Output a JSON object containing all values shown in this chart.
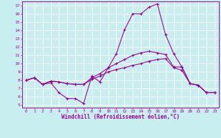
{
  "xlabel": "Windchill (Refroidissement éolien,°C)",
  "bg_color": "#c8eef0",
  "line_color": "#990099",
  "grid_color": "#ffffff",
  "xlim": [
    -0.5,
    23.5
  ],
  "ylim": [
    4.7,
    17.5
  ],
  "xticks": [
    0,
    1,
    2,
    3,
    4,
    5,
    6,
    7,
    8,
    9,
    10,
    11,
    12,
    13,
    14,
    15,
    16,
    17,
    18,
    19,
    20,
    21,
    22,
    23
  ],
  "yticks": [
    5,
    6,
    7,
    8,
    9,
    10,
    11,
    12,
    13,
    14,
    15,
    16,
    17
  ],
  "line1_x": [
    0,
    1,
    2,
    3,
    4,
    5,
    6,
    7,
    8,
    9,
    10,
    11,
    12,
    13,
    14,
    15,
    16,
    17,
    18,
    19,
    20,
    21,
    22,
    23
  ],
  "line1_y": [
    8.0,
    8.3,
    7.5,
    7.7,
    6.5,
    5.8,
    5.8,
    5.2,
    8.5,
    7.8,
    9.5,
    11.2,
    14.1,
    16.0,
    16.0,
    16.8,
    17.2,
    13.5,
    11.2,
    9.6,
    7.6,
    7.4,
    6.5,
    6.5
  ],
  "line2_x": [
    0,
    1,
    2,
    3,
    4,
    5,
    6,
    7,
    8,
    9,
    10,
    11,
    12,
    13,
    14,
    15,
    16,
    17,
    18,
    19,
    20,
    21,
    22,
    23
  ],
  "line2_y": [
    8.0,
    8.3,
    7.5,
    7.9,
    7.8,
    7.6,
    7.5,
    7.5,
    8.3,
    8.8,
    9.5,
    10.0,
    10.5,
    11.0,
    11.3,
    11.5,
    11.3,
    11.1,
    9.6,
    9.6,
    7.6,
    7.4,
    6.5,
    6.5
  ],
  "line3_x": [
    0,
    1,
    2,
    3,
    4,
    5,
    6,
    7,
    8,
    9,
    10,
    11,
    12,
    13,
    14,
    15,
    16,
    17,
    18,
    19,
    20,
    21,
    22,
    23
  ],
  "line3_y": [
    8.0,
    8.3,
    7.5,
    7.9,
    7.8,
    7.6,
    7.5,
    7.5,
    8.1,
    8.5,
    9.0,
    9.3,
    9.5,
    9.8,
    10.0,
    10.3,
    10.5,
    10.6,
    9.5,
    9.2,
    7.6,
    7.4,
    6.5,
    6.5
  ],
  "tick_fontsize": 4.5,
  "xlabel_fontsize": 5.5,
  "linewidth": 0.8,
  "markersize": 3
}
